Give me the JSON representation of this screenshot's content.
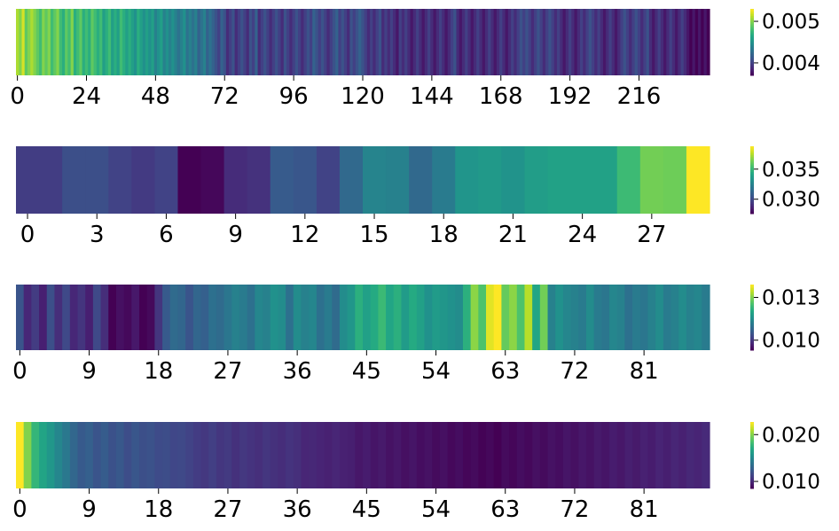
{
  "chart_data": [
    {
      "type": "heatmap",
      "colormap": "viridis",
      "n": 240,
      "xticks": [
        "0",
        "24",
        "48",
        "72",
        "96",
        "120",
        "144",
        "168",
        "192",
        "216"
      ],
      "colorbar": {
        "min": 0.0037,
        "max": 0.0053,
        "ticks": [
          "0.004",
          "0.005"
        ]
      },
      "values": [
        0.0051,
        0.005,
        0.0052,
        0.0049,
        0.005,
        0.0051,
        0.005,
        0.0049,
        0.0048,
        0.005,
        0.0049,
        0.005,
        0.0048,
        0.0049,
        0.005,
        0.0048,
        0.0047,
        0.0049,
        0.0048,
        0.005,
        0.0047,
        0.0048,
        0.0049,
        0.0047,
        0.0048,
        0.0047,
        0.0049,
        0.0048,
        0.0047,
        0.0048,
        0.0046,
        0.0047,
        0.0048,
        0.0046,
        0.0047,
        0.0046,
        0.0048,
        0.0047,
        0.0046,
        0.0047,
        0.0046,
        0.0045,
        0.0047,
        0.0046,
        0.0045,
        0.0046,
        0.0045,
        0.0046,
        0.0044,
        0.0045,
        0.0046,
        0.0044,
        0.0045,
        0.0044,
        0.0045,
        0.0044,
        0.0043,
        0.0044,
        0.0045,
        0.0043,
        0.0044,
        0.0043,
        0.0044,
        0.0042,
        0.0043,
        0.0044,
        0.0042,
        0.0043,
        0.0042,
        0.0041,
        0.004,
        0.0042,
        0.0041,
        0.0039,
        0.004,
        0.0041,
        0.0039,
        0.004,
        0.0041,
        0.004,
        0.0039,
        0.0041,
        0.004,
        0.0042,
        0.0039,
        0.004,
        0.0041,
        0.004,
        0.0039,
        0.004,
        0.0041,
        0.004,
        0.0039,
        0.0041,
        0.004,
        0.0039,
        0.004,
        0.0041,
        0.004,
        0.0039,
        0.004,
        0.0041,
        0.004,
        0.0042,
        0.0041,
        0.004,
        0.0041,
        0.004,
        0.0039,
        0.004,
        0.0041,
        0.0042,
        0.004,
        0.0041,
        0.004,
        0.0039,
        0.0041,
        0.004,
        0.0041,
        0.0042,
        0.0041,
        0.004,
        0.0039,
        0.004,
        0.0039,
        0.004,
        0.0041,
        0.0039,
        0.004,
        0.0039,
        0.004,
        0.0039,
        0.0038,
        0.004,
        0.0039,
        0.004,
        0.0039,
        0.0038,
        0.0039,
        0.004,
        0.0039,
        0.0038,
        0.0039,
        0.004,
        0.0039,
        0.0038,
        0.0039,
        0.004,
        0.0039,
        0.0038,
        0.0039,
        0.004,
        0.0041,
        0.0039,
        0.0038,
        0.0039,
        0.004,
        0.0039,
        0.0038,
        0.0039,
        0.004,
        0.0039,
        0.0038,
        0.0039,
        0.004,
        0.0039,
        0.0038,
        0.0039,
        0.004,
        0.0039,
        0.0038,
        0.0039,
        0.004,
        0.0039,
        0.004,
        0.0041,
        0.004,
        0.0041,
        0.004,
        0.0039,
        0.004,
        0.0041,
        0.004,
        0.0039,
        0.004,
        0.0041,
        0.004,
        0.0039,
        0.004,
        0.0039,
        0.0038,
        0.0039,
        0.004,
        0.0039,
        0.0038,
        0.0039,
        0.004,
        0.0039,
        0.004,
        0.0041,
        0.004,
        0.0039,
        0.004,
        0.0039,
        0.0038,
        0.0039,
        0.004,
        0.0039,
        0.0038,
        0.0039,
        0.004,
        0.0041,
        0.004,
        0.0039,
        0.004,
        0.0041,
        0.004,
        0.0039,
        0.004,
        0.0041,
        0.0039,
        0.0038,
        0.0039,
        0.004,
        0.0039,
        0.0038,
        0.0039,
        0.004,
        0.0039,
        0.0038,
        0.0039,
        0.004,
        0.0039,
        0.0038,
        0.0037,
        0.0038,
        0.0037,
        0.0038,
        0.0037,
        0.0038,
        0.0037
      ]
    },
    {
      "type": "heatmap",
      "colormap": "viridis",
      "n": 30,
      "xticks": [
        "0",
        "3",
        "6",
        "9",
        "12",
        "15",
        "18",
        "21",
        "24",
        "27"
      ],
      "colorbar": {
        "min": 0.0276,
        "max": 0.0388,
        "ticks": [
          "0.030",
          "0.035"
        ]
      },
      "values": [
        0.0296,
        0.0296,
        0.0303,
        0.0303,
        0.0298,
        0.0295,
        0.0298,
        0.0276,
        0.0278,
        0.029,
        0.0292,
        0.0308,
        0.0306,
        0.0298,
        0.0314,
        0.0326,
        0.0325,
        0.0314,
        0.0322,
        0.0334,
        0.0336,
        0.0333,
        0.0338,
        0.034,
        0.034,
        0.034,
        0.0352,
        0.0364,
        0.0363,
        0.0388
      ]
    },
    {
      "type": "heatmap",
      "colormap": "viridis",
      "n": 90,
      "xticks": [
        "0",
        "9",
        "18",
        "27",
        "36",
        "45",
        "54",
        "63",
        "72",
        "81"
      ],
      "colorbar": {
        "min": 0.0093,
        "max": 0.0139,
        "ticks": [
          "0.010",
          "0.013"
        ]
      },
      "values": [
        0.0105,
        0.0098,
        0.0101,
        0.0097,
        0.0104,
        0.0099,
        0.0103,
        0.0098,
        0.01,
        0.0097,
        0.0103,
        0.0099,
        0.0093,
        0.0095,
        0.0094,
        0.0096,
        0.0093,
        0.0094,
        0.01,
        0.0106,
        0.0109,
        0.0108,
        0.0105,
        0.0108,
        0.0107,
        0.011,
        0.0109,
        0.0111,
        0.0113,
        0.0112,
        0.011,
        0.0114,
        0.0113,
        0.0116,
        0.0115,
        0.011,
        0.0115,
        0.0113,
        0.0114,
        0.011,
        0.0112,
        0.0109,
        0.0115,
        0.0117,
        0.0122,
        0.0119,
        0.0121,
        0.0124,
        0.012,
        0.0122,
        0.0118,
        0.0121,
        0.0119,
        0.0116,
        0.0118,
        0.0117,
        0.0116,
        0.0115,
        0.0122,
        0.0131,
        0.0126,
        0.0137,
        0.0139,
        0.0128,
        0.0131,
        0.0126,
        0.0134,
        0.012,
        0.0129,
        0.0113,
        0.0116,
        0.0114,
        0.0113,
        0.0112,
        0.0115,
        0.0112,
        0.0111,
        0.0114,
        0.0113,
        0.011,
        0.0112,
        0.0111,
        0.0113,
        0.0115,
        0.0112,
        0.0113,
        0.0115,
        0.0113,
        0.0114,
        0.0112
      ]
    },
    {
      "type": "heatmap",
      "colormap": "viridis",
      "n": 90,
      "xticks": [
        "0",
        "9",
        "18",
        "27",
        "36",
        "45",
        "54",
        "63",
        "72",
        "81"
      ],
      "colorbar": {
        "min": 0.0085,
        "max": 0.0227,
        "ticks": [
          "0.010",
          "0.020"
        ]
      },
      "values": [
        0.0227,
        0.02,
        0.0178,
        0.0168,
        0.016,
        0.015,
        0.0142,
        0.0132,
        0.0125,
        0.0128,
        0.0122,
        0.0126,
        0.012,
        0.0124,
        0.0118,
        0.0123,
        0.0119,
        0.0121,
        0.0117,
        0.0118,
        0.0115,
        0.0116,
        0.0113,
        0.011,
        0.0108,
        0.0111,
        0.0107,
        0.0109,
        0.0105,
        0.0108,
        0.0106,
        0.0104,
        0.0107,
        0.0105,
        0.0103,
        0.0106,
        0.0104,
        0.01,
        0.0101,
        0.0099,
        0.0098,
        0.01,
        0.0098,
        0.0097,
        0.0094,
        0.0096,
        0.0093,
        0.0095,
        0.0092,
        0.0094,
        0.0091,
        0.0093,
        0.009,
        0.0092,
        0.0089,
        0.0091,
        0.0088,
        0.009,
        0.0087,
        0.0089,
        0.0086,
        0.0088,
        0.0085,
        0.0089,
        0.0087,
        0.009,
        0.0088,
        0.0091,
        0.0089,
        0.0092,
        0.009,
        0.0093,
        0.0091,
        0.0094,
        0.0092,
        0.0095,
        0.0093,
        0.0096,
        0.0094,
        0.0097,
        0.0095,
        0.0098,
        0.0096,
        0.0099,
        0.0097,
        0.01,
        0.0098,
        0.0101,
        0.0099,
        0.0102
      ]
    }
  ]
}
